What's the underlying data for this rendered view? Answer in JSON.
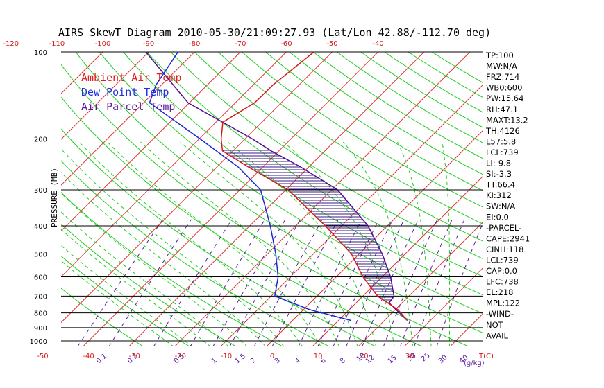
{
  "chart_data": {
    "type": "line",
    "title": "AIRS SkewT Diagram 2010-05-30/21:09:27.93 (Lat/Lon 42.88/-112.70 deg)",
    "ylabel": "PRESSURE (MB)",
    "y_scale": "log",
    "y_reversed": true,
    "ylim": [
      100,
      1000
    ],
    "pressure_ticks": [
      100,
      200,
      300,
      400,
      500,
      600,
      700,
      800,
      900,
      1000
    ],
    "temp_top_ticks": [
      "-120",
      "-110",
      "-100",
      "-90",
      "-80",
      "-70",
      "-60",
      "-50",
      "-40"
    ],
    "temp_bottom_ticks": [
      "-50",
      "-40",
      "-30",
      "-20",
      "-10",
      "0",
      "10",
      "20",
      "30"
    ],
    "temp_axis_label": "T(C)",
    "mixing_ratio_ticks": [
      "0.1",
      "0.2",
      "0.5",
      "1",
      "1.5",
      "2",
      "3",
      "4",
      "6",
      "8",
      "10",
      "12",
      "15",
      "20",
      "25",
      "30",
      "40"
    ],
    "mixing_ratio_label": "(g/kg)",
    "mixing_ratio_ticks_top_row": [
      "0.1",
      "0.2",
      "0.5",
      "1",
      "1.5",
      "2",
      "3",
      "4",
      "6",
      "8",
      "10",
      "12",
      "15",
      "20",
      "25",
      "30",
      "40"
    ],
    "legend": [
      {
        "label": "Ambient Air Temp",
        "color": "#e02020"
      },
      {
        "label": "Dew Point Temp",
        "color": "#2030e0"
      },
      {
        "label": "Air Parcel Temp",
        "color": "#5a1aa0"
      }
    ],
    "series": [
      {
        "name": "Ambient Air Temp",
        "color": "#d81818",
        "points": [
          [
            850,
            25.0
          ],
          [
            780,
            20.6
          ],
          [
            700,
            13.2
          ],
          [
            600,
            5.8
          ],
          [
            500,
            -1.7
          ],
          [
            400,
            -13.5
          ],
          [
            300,
            -29.5
          ],
          [
            250,
            -43.2
          ],
          [
            220,
            -52.3
          ],
          [
            200,
            -55.2
          ],
          [
            175,
            -58.5
          ],
          [
            150,
            -55.8
          ],
          [
            130,
            -55.7
          ],
          [
            100,
            -54.0
          ]
        ]
      },
      {
        "name": "Dew Point Temp",
        "color": "#1828d8",
        "points": [
          [
            850,
            12.8
          ],
          [
            780,
            1.4
          ],
          [
            700,
            -9.2
          ],
          [
            600,
            -12.7
          ],
          [
            500,
            -18.2
          ],
          [
            400,
            -25.5
          ],
          [
            300,
            -35.5
          ],
          [
            250,
            -45.4
          ],
          [
            200,
            -59.8
          ],
          [
            150,
            -78.7
          ],
          [
            130,
            -81.2
          ],
          [
            100,
            -83.6
          ]
        ]
      },
      {
        "name": "Air Parcel Temp",
        "color": "#4a1090",
        "points": [
          [
            850,
            25.0
          ],
          [
            739,
            17.2
          ],
          [
            700,
            16.8
          ],
          [
            600,
            11.8
          ],
          [
            500,
            5.0
          ],
          [
            400,
            -4.2
          ],
          [
            300,
            -18.7
          ],
          [
            250,
            -31.8
          ],
          [
            220,
            -41.7
          ],
          [
            200,
            -48.4
          ],
          [
            150,
            -70.3
          ],
          [
            100,
            -90.6
          ]
        ]
      }
    ],
    "indices": [
      "TP:100",
      "MW:N/A",
      "FRZ:714",
      "WB0:600",
      "PW:15.64",
      "RH:47.1",
      "MAXT:13.2",
      "TH:4126",
      "L57:5.8",
      "LCL:739",
      "LI:-9.8",
      "SI:-3.3",
      "TT:66.4",
      "KI:312",
      "SW:N/A",
      "EI:0.0",
      "-PARCEL-",
      "CAPE:2941",
      "CINH:118",
      "LCL:739",
      "CAP:0.0",
      "LFC:738",
      "EL:218",
      "MPL:122",
      "-WIND-",
      "NOT",
      "AVAIL"
    ],
    "colors": {
      "isotherm": "#e03030",
      "dry_adiabat": "#22cc22",
      "moist_adiabat": "#22cc22",
      "mixing_ratio": "#5a1aa0",
      "hatch": "#3a1a8a",
      "text": "#000000",
      "red_text": "#d81818"
    }
  }
}
